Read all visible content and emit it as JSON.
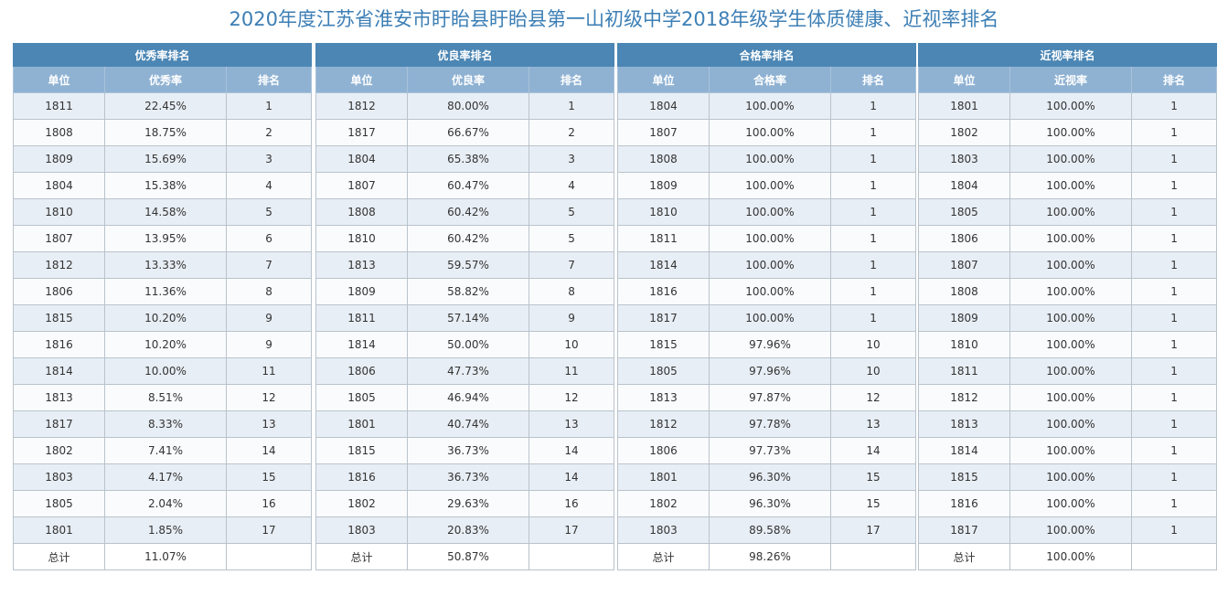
{
  "page_title": "2020年度江苏省淮安市盱眙县盱眙县第一山初级中学2018年级学生体质健康、近视率排名",
  "tables": [
    {
      "title": "优秀率排名",
      "headers": [
        "单位",
        "优秀率",
        "排名"
      ],
      "rows": [
        [
          "1811",
          "22.45%",
          "1"
        ],
        [
          "1808",
          "18.75%",
          "2"
        ],
        [
          "1809",
          "15.69%",
          "3"
        ],
        [
          "1804",
          "15.38%",
          "4"
        ],
        [
          "1810",
          "14.58%",
          "5"
        ],
        [
          "1807",
          "13.95%",
          "6"
        ],
        [
          "1812",
          "13.33%",
          "7"
        ],
        [
          "1806",
          "11.36%",
          "8"
        ],
        [
          "1815",
          "10.20%",
          "9"
        ],
        [
          "1816",
          "10.20%",
          "9"
        ],
        [
          "1814",
          "10.00%",
          "11"
        ],
        [
          "1813",
          "8.51%",
          "12"
        ],
        [
          "1817",
          "8.33%",
          "13"
        ],
        [
          "1802",
          "7.41%",
          "14"
        ],
        [
          "1803",
          "4.17%",
          "15"
        ],
        [
          "1805",
          "2.04%",
          "16"
        ],
        [
          "1801",
          "1.85%",
          "17"
        ]
      ],
      "total": [
        "总计",
        "11.07%",
        ""
      ]
    },
    {
      "title": "优良率排名",
      "headers": [
        "单位",
        "优良率",
        "排名"
      ],
      "rows": [
        [
          "1812",
          "80.00%",
          "1"
        ],
        [
          "1817",
          "66.67%",
          "2"
        ],
        [
          "1804",
          "65.38%",
          "3"
        ],
        [
          "1807",
          "60.47%",
          "4"
        ],
        [
          "1808",
          "60.42%",
          "5"
        ],
        [
          "1810",
          "60.42%",
          "5"
        ],
        [
          "1813",
          "59.57%",
          "7"
        ],
        [
          "1809",
          "58.82%",
          "8"
        ],
        [
          "1811",
          "57.14%",
          "9"
        ],
        [
          "1814",
          "50.00%",
          "10"
        ],
        [
          "1806",
          "47.73%",
          "11"
        ],
        [
          "1805",
          "46.94%",
          "12"
        ],
        [
          "1801",
          "40.74%",
          "13"
        ],
        [
          "1815",
          "36.73%",
          "14"
        ],
        [
          "1816",
          "36.73%",
          "14"
        ],
        [
          "1802",
          "29.63%",
          "16"
        ],
        [
          "1803",
          "20.83%",
          "17"
        ]
      ],
      "total": [
        "总计",
        "50.87%",
        ""
      ]
    },
    {
      "title": "合格率排名",
      "headers": [
        "单位",
        "合格率",
        "排名"
      ],
      "rows": [
        [
          "1804",
          "100.00%",
          "1"
        ],
        [
          "1807",
          "100.00%",
          "1"
        ],
        [
          "1808",
          "100.00%",
          "1"
        ],
        [
          "1809",
          "100.00%",
          "1"
        ],
        [
          "1810",
          "100.00%",
          "1"
        ],
        [
          "1811",
          "100.00%",
          "1"
        ],
        [
          "1814",
          "100.00%",
          "1"
        ],
        [
          "1816",
          "100.00%",
          "1"
        ],
        [
          "1817",
          "100.00%",
          "1"
        ],
        [
          "1815",
          "97.96%",
          "10"
        ],
        [
          "1805",
          "97.96%",
          "10"
        ],
        [
          "1813",
          "97.87%",
          "12"
        ],
        [
          "1812",
          "97.78%",
          "13"
        ],
        [
          "1806",
          "97.73%",
          "14"
        ],
        [
          "1801",
          "96.30%",
          "15"
        ],
        [
          "1802",
          "96.30%",
          "15"
        ],
        [
          "1803",
          "89.58%",
          "17"
        ]
      ],
      "total": [
        "总计",
        "98.26%",
        ""
      ]
    },
    {
      "title": "近视率排名",
      "headers": [
        "单位",
        "近视率",
        "排名"
      ],
      "rows": [
        [
          "1801",
          "100.00%",
          "1"
        ],
        [
          "1802",
          "100.00%",
          "1"
        ],
        [
          "1803",
          "100.00%",
          "1"
        ],
        [
          "1804",
          "100.00%",
          "1"
        ],
        [
          "1805",
          "100.00%",
          "1"
        ],
        [
          "1806",
          "100.00%",
          "1"
        ],
        [
          "1807",
          "100.00%",
          "1"
        ],
        [
          "1808",
          "100.00%",
          "1"
        ],
        [
          "1809",
          "100.00%",
          "1"
        ],
        [
          "1810",
          "100.00%",
          "1"
        ],
        [
          "1811",
          "100.00%",
          "1"
        ],
        [
          "1812",
          "100.00%",
          "1"
        ],
        [
          "1813",
          "100.00%",
          "1"
        ],
        [
          "1814",
          "100.00%",
          "1"
        ],
        [
          "1815",
          "100.00%",
          "1"
        ],
        [
          "1816",
          "100.00%",
          "1"
        ],
        [
          "1817",
          "100.00%",
          "1"
        ]
      ],
      "total": [
        "总计",
        "100.00%",
        ""
      ]
    }
  ]
}
